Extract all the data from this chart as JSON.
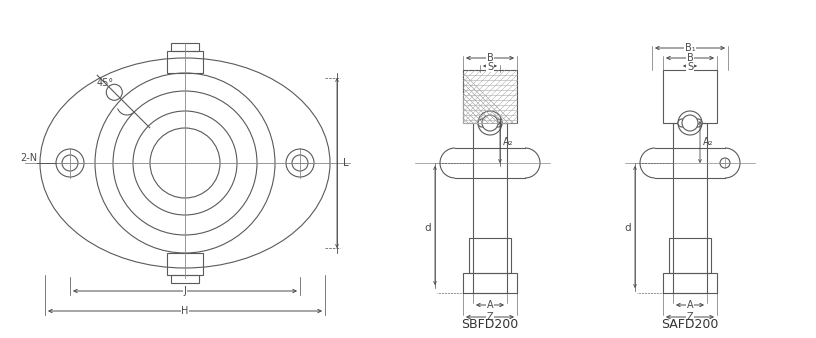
{
  "bg_color": "#ffffff",
  "line_color": "#5a5a5a",
  "hatch_color": "#5a5a5a",
  "dim_color": "#4a4a4a",
  "figure_size": [
    8.16,
    3.38
  ],
  "dpi": 100,
  "labels": {
    "label_45": "45°",
    "label_2N": "2-N",
    "label_J": "J",
    "label_H": "H",
    "label_L": "L",
    "label_d_left": "d",
    "label_B1": "B₁",
    "label_B": "B",
    "label_S": "S",
    "label_A2": "A₂",
    "label_A": "A",
    "label_Z": "Z",
    "label_d_right": "d",
    "label_SBFD200": "SBFD200",
    "label_SAFD200": "SAFD200"
  }
}
